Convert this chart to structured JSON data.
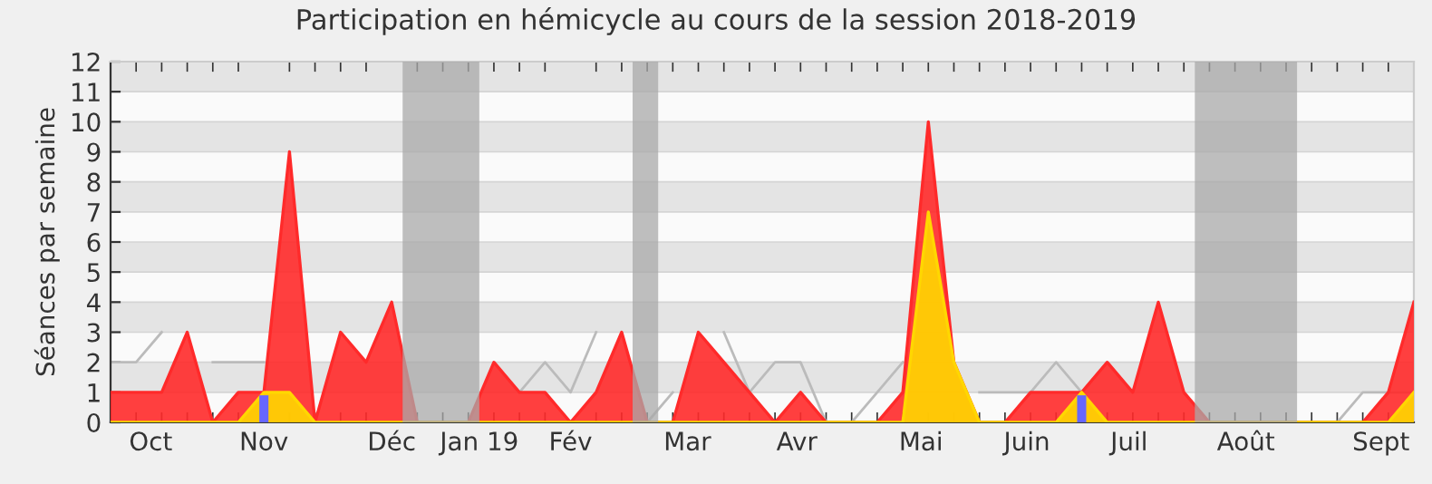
{
  "chart_data": {
    "type": "area",
    "title": "Participation en hémicycle au cours de la session 2018-2019",
    "ylabel": "Séances par semaine",
    "x": [
      "2018-09-24",
      "2018-10-01",
      "2018-10-08",
      "2018-10-15",
      "2018-10-22",
      "2018-10-29",
      "2018-11-05",
      "2018-11-12",
      "2018-11-19",
      "2018-11-26",
      "2018-12-03",
      "2018-12-10",
      "2018-12-17",
      "2018-12-24",
      "2018-12-31",
      "2019-01-07",
      "2019-01-14",
      "2019-01-21",
      "2019-01-28",
      "2019-02-04",
      "2019-02-11",
      "2019-02-18",
      "2019-02-25",
      "2019-03-04",
      "2019-03-11",
      "2019-03-18",
      "2019-03-25",
      "2019-04-01",
      "2019-04-08",
      "2019-04-15",
      "2019-04-22",
      "2019-04-29",
      "2019-05-06",
      "2019-05-13",
      "2019-05-20",
      "2019-05-27",
      "2019-06-03",
      "2019-06-10",
      "2019-06-17",
      "2019-06-24",
      "2019-07-01",
      "2019-07-08",
      "2019-07-15",
      "2019-07-22",
      "2019-07-29",
      "2019-08-05",
      "2019-08-12",
      "2019-08-19",
      "2019-08-26",
      "2019-09-02",
      "2019-09-09",
      "2019-09-16"
    ],
    "series": [
      {
        "type": "line",
        "color": "#bbbbbb",
        "values": [
          2,
          2,
          3,
          null,
          2,
          2,
          2,
          null,
          null,
          null,
          null,
          null,
          0,
          0,
          0,
          null,
          1,
          2,
          1,
          3,
          null,
          0,
          1,
          null,
          3,
          1,
          2,
          2,
          0,
          0,
          1,
          2,
          null,
          null,
          1,
          1,
          1,
          2,
          1,
          null,
          null,
          null,
          null,
          0,
          0,
          0,
          0,
          0,
          0,
          1,
          1,
          1
        ]
      },
      {
        "color": "#ff2a2a",
        "values": [
          1,
          1,
          1,
          3,
          0,
          1,
          1,
          9,
          0,
          3,
          2,
          4,
          0,
          0,
          0,
          2,
          1,
          1,
          0,
          1,
          3,
          0,
          0,
          3,
          2,
          1,
          0,
          1,
          0,
          0,
          0,
          1,
          10,
          2,
          0,
          0,
          1,
          1,
          1,
          2,
          1,
          4,
          1,
          0,
          0,
          0,
          0,
          0,
          0,
          0,
          1,
          4
        ]
      },
      {
        "type": "area",
        "color": "#ffd700",
        "values": [
          0,
          0,
          0,
          0,
          0,
          0,
          1,
          1,
          0,
          0,
          0,
          0,
          0,
          0,
          0,
          0,
          0,
          0,
          0,
          0,
          0,
          0,
          0,
          0,
          0,
          0,
          0,
          0,
          0,
          0,
          0,
          0,
          7,
          2,
          0,
          0,
          0,
          0,
          1,
          0,
          0,
          0,
          0,
          0,
          0,
          0,
          0,
          0,
          0,
          0,
          0,
          1
        ]
      },
      {
        "type": "bar",
        "color": "#6666ff",
        "values": [
          null,
          null,
          null,
          null,
          null,
          null,
          0.9,
          null,
          null,
          null,
          null,
          null,
          null,
          null,
          null,
          null,
          null,
          null,
          null,
          null,
          null,
          null,
          null,
          null,
          null,
          null,
          null,
          null,
          null,
          null,
          null,
          null,
          null,
          null,
          null,
          null,
          null,
          null,
          0.9,
          null,
          null,
          null,
          null,
          null,
          null,
          null,
          null,
          null,
          null,
          null,
          null,
          null
        ]
      }
    ],
    "bands": [
      {
        "axis": "x",
        "from": "2018-12-13",
        "to": "2019-01-03",
        "color": "#a9a9a9"
      },
      {
        "axis": "x",
        "from": "2019-02-14",
        "to": "2019-02-21",
        "color": "#a9a9a9"
      },
      {
        "axis": "x",
        "from": "2019-07-18",
        "to": "2019-08-15",
        "color": "#a9a9a9"
      }
    ],
    "xlim": [
      "2018-09-24",
      "2019-09-16"
    ],
    "xticks": [
      {
        "value": "2018-10-05",
        "label": "Oct"
      },
      {
        "value": "2018-11-05",
        "label": "Nov"
      },
      {
        "value": "2018-12-10",
        "label": "Déc"
      },
      {
        "value": "2019-01-03",
        "label": "Jan 19"
      },
      {
        "value": "2019-01-28",
        "label": "Fév"
      },
      {
        "value": "2019-03-01",
        "label": "Mar"
      },
      {
        "value": "2019-03-31",
        "label": "Avr"
      },
      {
        "value": "2019-05-04",
        "label": "Mai"
      },
      {
        "value": "2019-06-02",
        "label": "Juin"
      },
      {
        "value": "2019-06-30",
        "label": "Juil"
      },
      {
        "value": "2019-08-01",
        "label": "Août"
      },
      {
        "value": "2019-09-07",
        "label": "Sept"
      }
    ],
    "ylim": [
      0,
      12
    ],
    "yticks": [
      0,
      1,
      2,
      3,
      4,
      5,
      6,
      7,
      8,
      9,
      10,
      11,
      12
    ],
    "grid": "y"
  }
}
